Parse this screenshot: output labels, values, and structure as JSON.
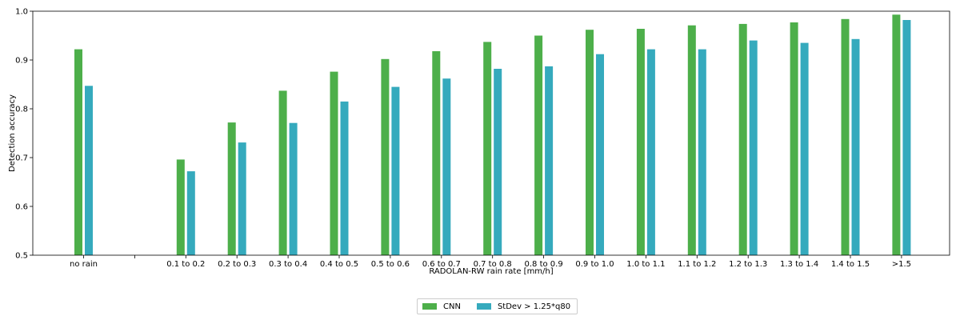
{
  "chart_data": {
    "type": "bar",
    "title": "",
    "xlabel": "RADOLAN-RW rain rate [mm/h]",
    "ylabel": "Detection accuracy",
    "ylim": [
      0.5,
      1.0
    ],
    "yticks": [
      "0.5",
      "0.6",
      "0.7",
      "0.8",
      "0.9",
      "1.0"
    ],
    "grid": false,
    "legend_position": "bottom-center",
    "categories": [
      "no rain",
      "",
      "0.1 to 0.2",
      "0.2 to 0.3",
      "0.3 to 0.4",
      "0.4 to 0.5",
      "0.5 to 0.6",
      "0.6 to 0.7",
      "0.7 to 0.8",
      "0.8 to 0.9",
      "0.9 to 1.0",
      "1.0 to 1.1",
      "1.1 to 1.2",
      "1.2 to 1.3",
      "1.3 to 1.4",
      "1.4 to 1.5",
      ">1.5"
    ],
    "series": [
      {
        "name": "CNN",
        "color": "#4daf4a",
        "values": [
          0.922,
          null,
          0.696,
          0.772,
          0.837,
          0.876,
          0.902,
          0.918,
          0.937,
          0.95,
          0.962,
          0.964,
          0.971,
          0.974,
          0.977,
          0.984,
          0.993
        ]
      },
      {
        "name": "StDev > 1.25*q80",
        "color": "#35aabd",
        "values": [
          0.847,
          null,
          0.672,
          0.731,
          0.771,
          0.815,
          0.845,
          0.862,
          0.882,
          0.887,
          0.912,
          0.922,
          0.922,
          0.94,
          0.935,
          0.943,
          0.982
        ]
      }
    ]
  }
}
